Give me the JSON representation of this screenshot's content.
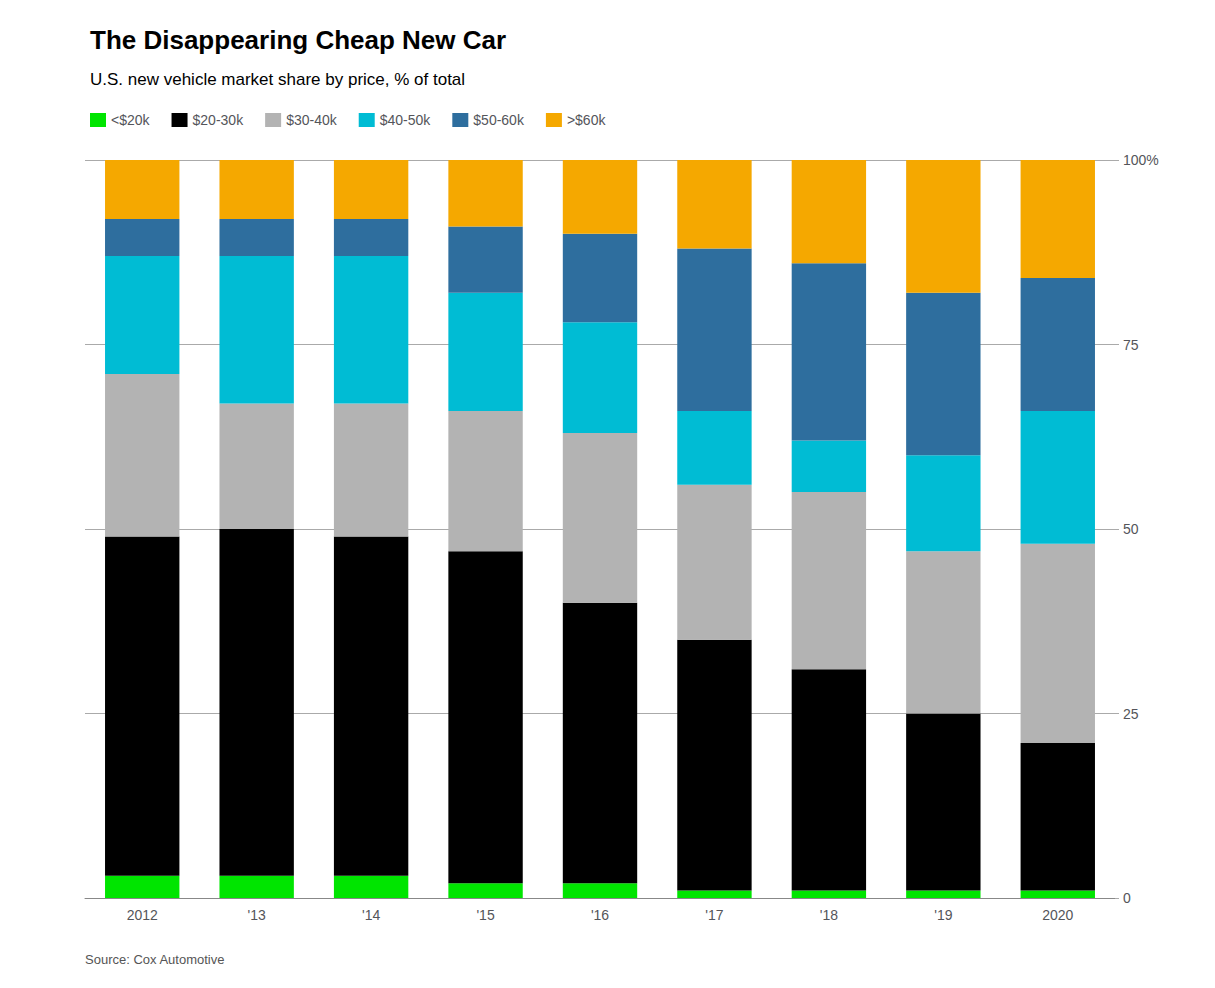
{
  "chart_data": {
    "type": "bar",
    "stacked": true,
    "title": "The Disappearing Cheap New Car",
    "subtitle": "U.S. new vehicle market share by price, % of total",
    "source": "Source: Cox Automotive",
    "categories": [
      "2012",
      "'13",
      "'14",
      "'15",
      "'16",
      "'17",
      "'18",
      "'19",
      "2020"
    ],
    "series": [
      {
        "name": "<$20k",
        "color": "#00e500",
        "values": [
          3.0,
          3.0,
          3.0,
          2.0,
          2.0,
          1.0,
          1.0,
          1.0,
          1.0
        ]
      },
      {
        "name": "$20-30k",
        "color": "#000000",
        "values": [
          46.0,
          47.0,
          46.0,
          45.0,
          38.0,
          34.0,
          30.0,
          24.0,
          20.0
        ]
      },
      {
        "name": "$30-40k",
        "color": "#b3b3b3",
        "values": [
          22.0,
          17.0,
          18.0,
          19.0,
          23.0,
          21.0,
          24.0,
          22.0,
          27.0
        ]
      },
      {
        "name": "$40-50k",
        "color": "#00bcd4",
        "values": [
          16.0,
          20.0,
          20.0,
          16.0,
          15.0,
          10.0,
          7.0,
          13.0,
          18.0
        ]
      },
      {
        "name": "$50-60k",
        "color": "#2e6e9e",
        "values": [
          5.0,
          5.0,
          5.0,
          9.0,
          12.0,
          22.0,
          24.0,
          22.0,
          18.0
        ]
      },
      {
        "name": ">$60k",
        "color": "#f5a800",
        "values": [
          8.0,
          8.0,
          8.0,
          9.0,
          10.0,
          12.0,
          14.0,
          18.0,
          16.0
        ]
      }
    ],
    "ylim": [
      0,
      100
    ],
    "yticks": [
      0,
      25,
      50,
      75,
      {
        "value": 100,
        "label": "100%"
      }
    ],
    "grid": true,
    "legend": "upper left"
  }
}
